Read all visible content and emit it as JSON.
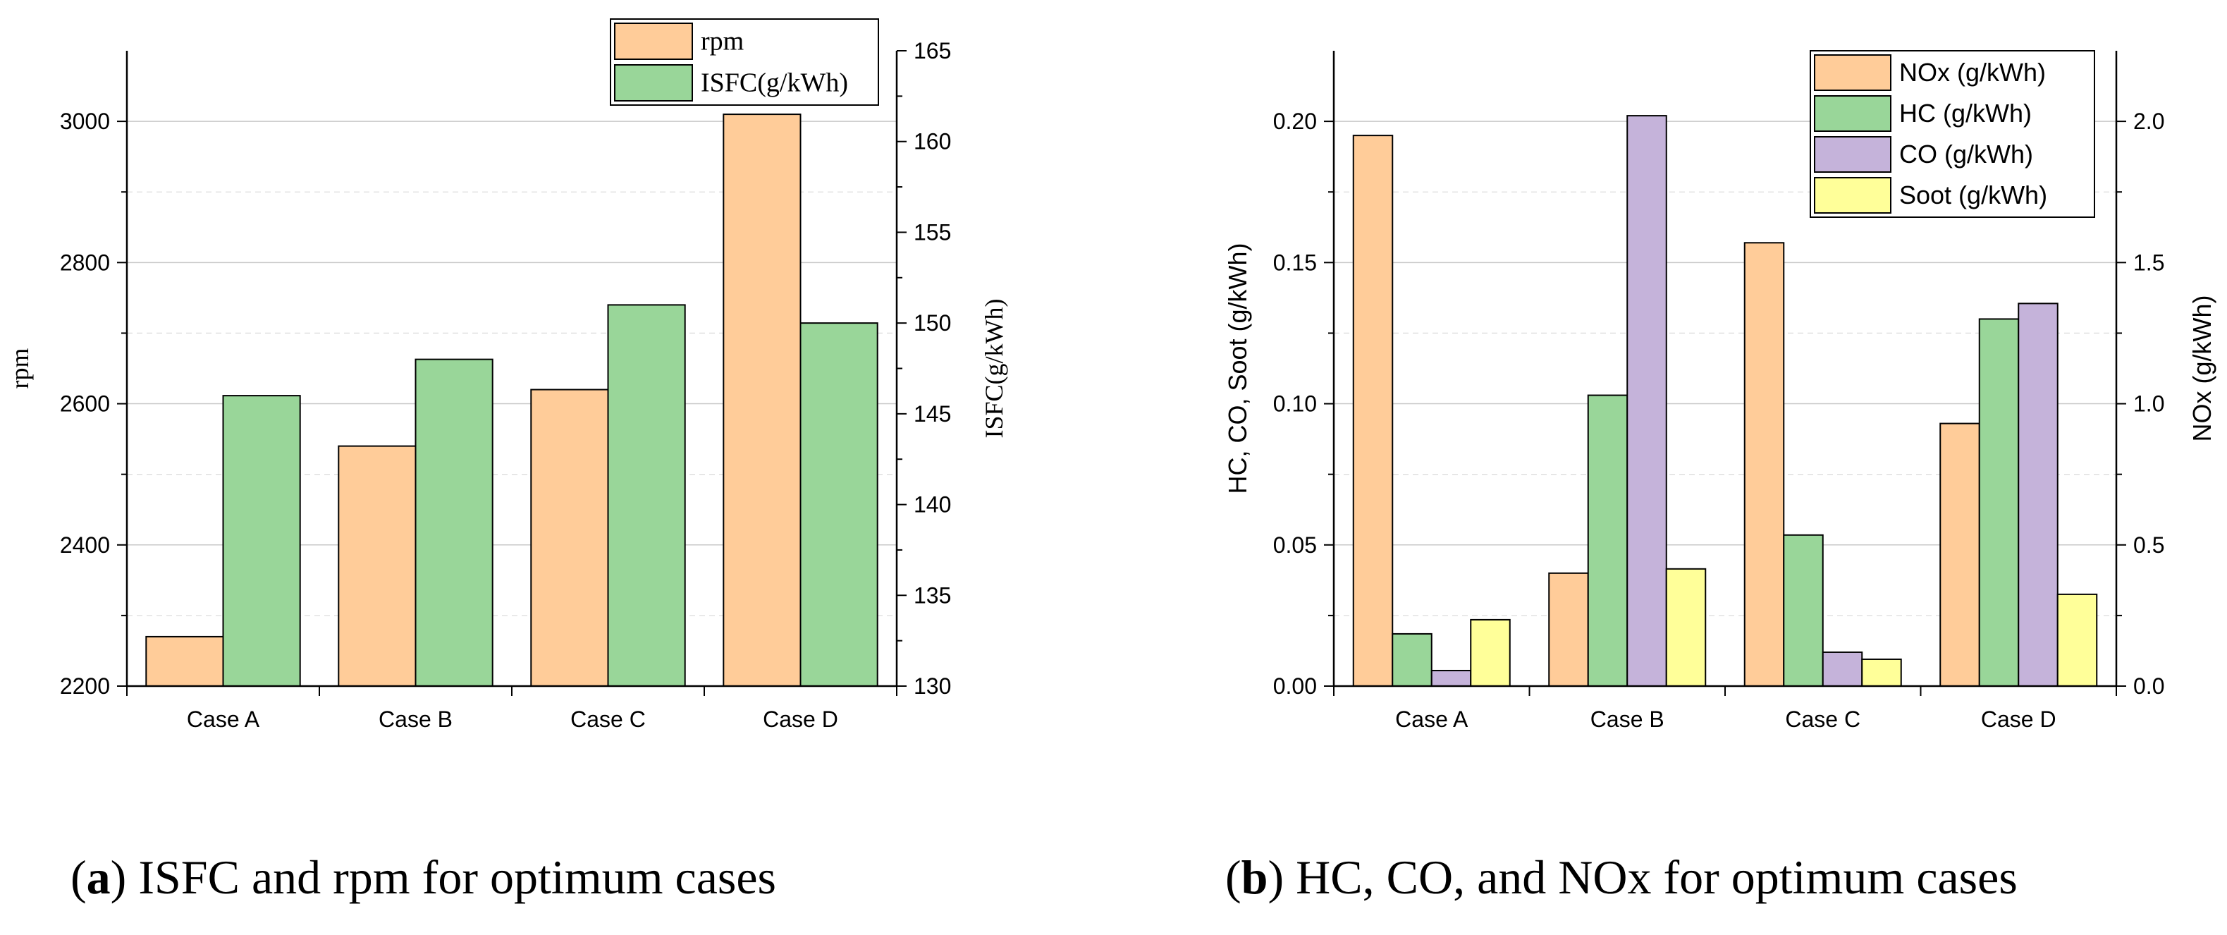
{
  "captions": {
    "a": {
      "letter": "a",
      "text": "ISFC and rpm for optimum cases"
    },
    "b": {
      "letter": "b",
      "text": "HC, CO, and NOx for optimum cases"
    }
  },
  "chart_data": [
    {
      "type": "bar",
      "categories": [
        "Case A",
        "Case B",
        "Case C",
        "Case D"
      ],
      "series": [
        {
          "name": "rpm",
          "axis": "left",
          "color": "#FFCC99",
          "values": [
            2270,
            2540,
            2620,
            3010
          ]
        },
        {
          "name": "ISFC(g/kWh)",
          "axis": "right",
          "color": "#99D699",
          "values": [
            146,
            148,
            151,
            150
          ]
        }
      ],
      "ylabel": "rpm",
      "ylim": [
        2200,
        3100
      ],
      "yticks": [
        2200,
        2400,
        2600,
        2800,
        3000
      ],
      "y2label": "ISFC(g/kWh)",
      "y2lim": [
        130,
        165
      ],
      "y2ticks": [
        130,
        135,
        140,
        145,
        150,
        155,
        160,
        165
      ],
      "grid": true,
      "legend": "top-right"
    },
    {
      "type": "bar",
      "categories": [
        "Case A",
        "Case B",
        "Case C",
        "Case D"
      ],
      "series": [
        {
          "name": "NOx (g/kWh)",
          "axis": "right",
          "color": "#FFCC99",
          "values": [
            1.95,
            0.4,
            1.57,
            0.93
          ]
        },
        {
          "name": "HC (g/kWh)",
          "axis": "left",
          "color": "#99D699",
          "values": [
            0.0185,
            0.103,
            0.0535,
            0.13
          ]
        },
        {
          "name": "CO (g/kWh)",
          "axis": "left",
          "color": "#C5B3DA",
          "values": [
            0.0055,
            0.202,
            0.012,
            0.1355
          ]
        },
        {
          "name": "Soot (g/kWh)",
          "axis": "left",
          "color": "#FFFF99",
          "values": [
            0.0235,
            0.0415,
            0.0095,
            0.0325
          ]
        }
      ],
      "ylabel": "HC, CO, Soot (g/kWh)",
      "ylim": [
        0,
        0.225
      ],
      "yticks": [
        "0.00",
        "0.05",
        "0.10",
        "0.15",
        "0.20"
      ],
      "y2label": "NOx (g/kWh)",
      "y2lim": [
        0,
        2.25
      ],
      "y2ticks": [
        "0.0",
        "0.5",
        "1.0",
        "1.5",
        "2.0"
      ],
      "grid": true,
      "legend": "top-right"
    }
  ]
}
